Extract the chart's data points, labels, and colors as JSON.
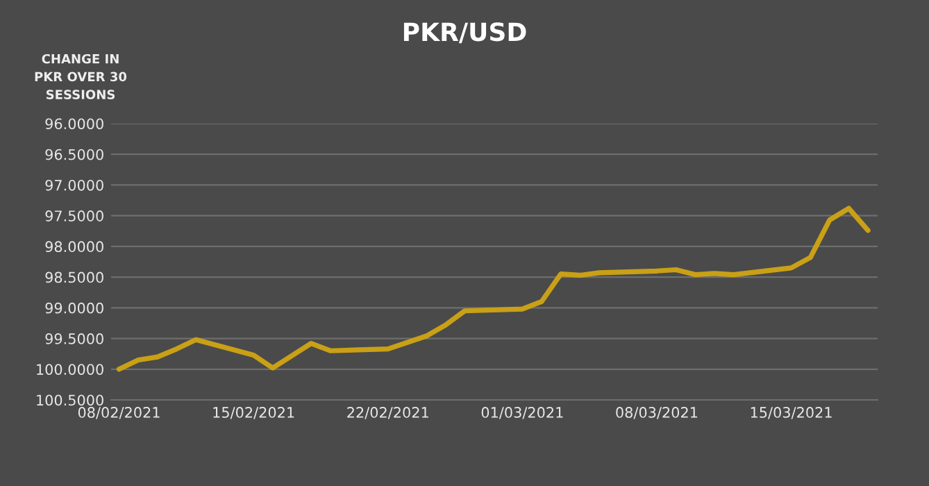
{
  "chart_data": {
    "type": "line",
    "title": "PKR/USD",
    "ylabel": "CHANGE IN\nPKR OVER 30\nSESSIONS",
    "x": [
      "2021-02-08",
      "2021-02-09",
      "2021-02-10",
      "2021-02-11",
      "2021-02-12",
      "2021-02-15",
      "2021-02-16",
      "2021-02-18",
      "2021-02-19",
      "2021-02-22",
      "2021-02-24",
      "2021-02-25",
      "2021-02-26",
      "2021-03-01",
      "2021-03-02",
      "2021-03-03",
      "2021-03-04",
      "2021-03-05",
      "2021-03-08",
      "2021-03-09",
      "2021-03-10",
      "2021-03-11",
      "2021-03-12",
      "2021-03-15",
      "2021-03-16",
      "2021-03-17",
      "2021-03-18",
      "2021-03-19"
    ],
    "series": [
      {
        "color": "#c9a016",
        "values": [
          100.0,
          99.85,
          99.8,
          99.67,
          99.52,
          99.77,
          99.98,
          99.58,
          99.7,
          99.67,
          99.46,
          99.28,
          99.05,
          99.02,
          98.9,
          98.45,
          98.47,
          98.43,
          98.4,
          98.38,
          98.46,
          98.44,
          98.46,
          98.35,
          98.18,
          97.57,
          97.38,
          97.74
        ]
      }
    ],
    "xlim": [
      "2021-02-07T14:00",
      "2021-03-19T12:00"
    ],
    "xticks": [
      {
        "value": "2021-02-08",
        "label": "08/02/2021"
      },
      {
        "value": "2021-02-15",
        "label": "15/02/2021"
      },
      {
        "value": "2021-02-22",
        "label": "22/02/2021"
      },
      {
        "value": "2021-03-01",
        "label": "01/03/2021"
      },
      {
        "value": "2021-03-08",
        "label": "08/03/2021"
      },
      {
        "value": "2021-03-15",
        "label": "15/03/2021"
      }
    ],
    "ylim": [
      100.5,
      96.0
    ],
    "yticks": [
      {
        "value": 96.0,
        "label": "96.0000"
      },
      {
        "value": 96.5,
        "label": "96.5000"
      },
      {
        "value": 97.0,
        "label": "97.0000"
      },
      {
        "value": 97.5,
        "label": "97.5000"
      },
      {
        "value": 98.0,
        "label": "98.0000"
      },
      {
        "value": 98.5,
        "label": "98.5000"
      },
      {
        "value": 99.0,
        "label": "99.0000"
      },
      {
        "value": 99.5,
        "label": "99.5000"
      },
      {
        "value": 100.0,
        "label": "100.0000"
      },
      {
        "value": 100.5,
        "label": "100.5000"
      }
    ],
    "grid": "y",
    "legend": false,
    "marker": "none",
    "line_style": "solid"
  }
}
